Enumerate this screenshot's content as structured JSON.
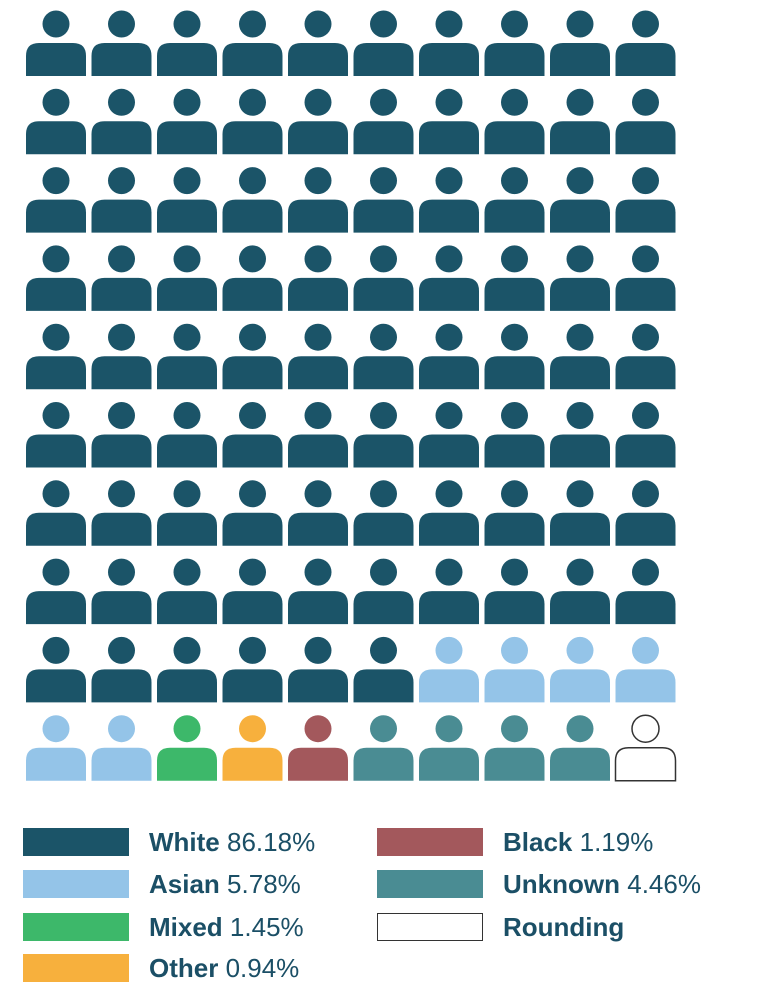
{
  "chart_data": {
    "type": "pictogram",
    "rows": 10,
    "cols": 10,
    "icon": "person-icon",
    "series": [
      {
        "name": "White",
        "value": 86.18,
        "value_label": "86.18%",
        "icons": 86,
        "color": "#1b5468"
      },
      {
        "name": "Asian",
        "value": 5.78,
        "value_label": "5.78%",
        "icons": 6,
        "color": "#94c4e8"
      },
      {
        "name": "Mixed",
        "value": 1.45,
        "value_label": "1.45%",
        "icons": 1,
        "color": "#3db86a"
      },
      {
        "name": "Other",
        "value": 0.94,
        "value_label": "0.94%",
        "icons": 1,
        "color": "#f7b03d"
      },
      {
        "name": "Black",
        "value": 1.19,
        "value_label": "1.19%",
        "icons": 1,
        "color": "#a3585c"
      },
      {
        "name": "Unknown",
        "value": 4.46,
        "value_label": "4.46%",
        "icons": 4,
        "color": "#4a8c93"
      },
      {
        "name": "Rounding",
        "value": null,
        "value_label": "",
        "icons": 1,
        "color": "#ffffff",
        "outline": "#333333"
      }
    ]
  }
}
